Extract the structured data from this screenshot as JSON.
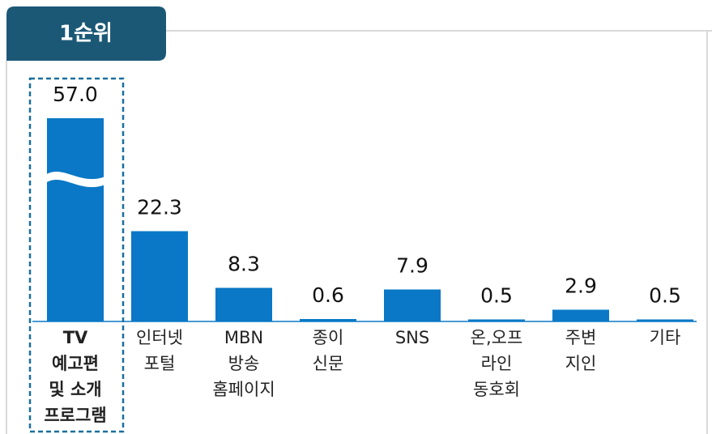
{
  "chart_data": {
    "type": "bar",
    "title": "1순위",
    "categories": [
      [
        "TV",
        "예고편",
        "및 소개",
        "프로그램"
      ],
      [
        "인터넷",
        "포털"
      ],
      [
        "MBN",
        "방송",
        "홈페이지"
      ],
      [
        "종이",
        "신문"
      ],
      [
        "SNS"
      ],
      [
        "온,오프",
        "라인",
        "동호회"
      ],
      [
        "주변",
        "지인"
      ],
      [
        "기타"
      ]
    ],
    "values": [
      57.0,
      22.3,
      8.3,
      0.6,
      7.9,
      0.5,
      2.9,
      0.5
    ],
    "value_labels": [
      "57.0",
      "22.3",
      "8.3",
      "0.6",
      "7.9",
      "0.5",
      "2.9",
      "0.5"
    ],
    "color": "#0a78c6",
    "highlight_color": "#1a6f9e"
  }
}
